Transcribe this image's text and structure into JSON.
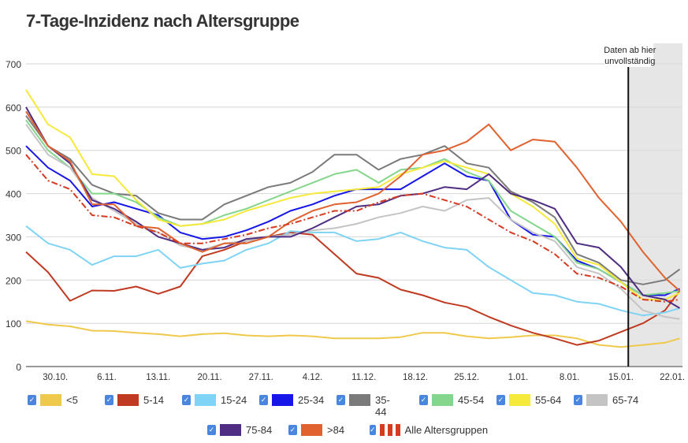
{
  "title": "7-Tage-Inzidenz nach Altersgruppe",
  "annotation": [
    "Daten ab hier",
    "unvollständig"
  ],
  "chart_data": {
    "type": "line",
    "title": "7-Tage-Inzidenz nach Altersgruppe",
    "xlabel": "",
    "ylabel": "",
    "ylim": [
      0,
      700
    ],
    "yticks": [
      "0",
      "100",
      "200",
      "300",
      "400",
      "500",
      "600",
      "700"
    ],
    "x_days_from_26_10": [
      0,
      3,
      6,
      9,
      12,
      15,
      18,
      21,
      24,
      27,
      30,
      33,
      36,
      39,
      42,
      45,
      48,
      51,
      54,
      57,
      60,
      63,
      66,
      69,
      72,
      75,
      78,
      81,
      84,
      87,
      89
    ],
    "xticks": [
      {
        "label": "30.10.",
        "day": 4
      },
      {
        "label": "6.11.",
        "day": 11
      },
      {
        "label": "13.11.",
        "day": 18
      },
      {
        "label": "20.11.",
        "day": 25
      },
      {
        "label": "27.11.",
        "day": 32
      },
      {
        "label": "4.12.",
        "day": 39
      },
      {
        "label": "11.12.",
        "day": 46
      },
      {
        "label": "18.12.",
        "day": 53
      },
      {
        "label": "25.12.",
        "day": 60
      },
      {
        "label": "1.01.",
        "day": 67
      },
      {
        "label": "8.01.",
        "day": 74
      },
      {
        "label": "15.01.",
        "day": 81
      },
      {
        "label": "22.01.",
        "day": 88
      }
    ],
    "incomplete_from_day": 82,
    "grid": true,
    "legend_position": "bottom",
    "series": [
      {
        "name": "<5",
        "color": "#efc94c",
        "values": [
          105,
          97,
          93,
          83,
          82,
          78,
          75,
          70,
          75,
          77,
          72,
          70,
          72,
          70,
          65,
          65,
          65,
          68,
          78,
          78,
          70,
          65,
          68,
          72,
          72,
          65,
          50,
          45,
          50,
          55,
          65
        ]
      },
      {
        "name": "5-14",
        "color": "#bf3a20",
        "values": [
          265,
          218,
          152,
          176,
          175,
          185,
          168,
          185,
          255,
          270,
          290,
          300,
          310,
          305,
          260,
          215,
          205,
          178,
          165,
          148,
          138,
          115,
          95,
          78,
          65,
          50,
          60,
          80,
          100,
          130,
          175
        ]
      },
      {
        "name": "15-24",
        "color": "#7fd3f5",
        "values": [
          325,
          285,
          270,
          235,
          255,
          255,
          270,
          228,
          238,
          245,
          270,
          285,
          313,
          310,
          310,
          290,
          295,
          310,
          290,
          275,
          270,
          230,
          200,
          170,
          165,
          150,
          145,
          130,
          118,
          125,
          135
        ]
      },
      {
        "name": "25-34",
        "color": "#1616e8",
        "values": [
          510,
          460,
          430,
          370,
          380,
          365,
          350,
          310,
          295,
          300,
          315,
          335,
          360,
          375,
          395,
          410,
          410,
          410,
          440,
          470,
          440,
          430,
          340,
          305,
          300,
          245,
          225,
          195,
          165,
          165,
          180
        ]
      },
      {
        "name": "35-44",
        "color": "#7a7a7a",
        "values": [
          580,
          510,
          480,
          420,
          400,
          395,
          355,
          340,
          340,
          375,
          395,
          415,
          425,
          450,
          490,
          490,
          455,
          480,
          490,
          510,
          470,
          460,
          405,
          380,
          345,
          260,
          240,
          200,
          190,
          200,
          225
        ]
      },
      {
        "name": "45-54",
        "color": "#84d68c",
        "values": [
          570,
          500,
          460,
          400,
          400,
          380,
          345,
          325,
          330,
          350,
          365,
          385,
          405,
          425,
          445,
          455,
          425,
          455,
          460,
          480,
          450,
          430,
          360,
          330,
          300,
          240,
          225,
          195,
          165,
          170,
          175
        ]
      },
      {
        "name": "55-64",
        "color": "#f5e93a",
        "values": [
          640,
          560,
          530,
          445,
          440,
          385,
          340,
          325,
          330,
          340,
          360,
          375,
          390,
          400,
          405,
          410,
          415,
          445,
          460,
          475,
          460,
          445,
          400,
          370,
          330,
          250,
          235,
          195,
          155,
          155,
          170
        ]
      },
      {
        "name": "65-74",
        "color": "#c4c4c4",
        "values": [
          560,
          490,
          460,
          390,
          360,
          330,
          310,
          280,
          270,
          285,
          290,
          300,
          305,
          315,
          320,
          330,
          345,
          355,
          370,
          360,
          385,
          390,
          340,
          310,
          290,
          230,
          215,
          180,
          130,
          115,
          110
        ]
      },
      {
        "name": "75-84",
        "color": "#4f2d82",
        "values": [
          600,
          510,
          470,
          385,
          365,
          335,
          300,
          285,
          270,
          275,
          295,
          300,
          300,
          320,
          345,
          370,
          375,
          395,
          400,
          415,
          410,
          445,
          400,
          385,
          365,
          285,
          275,
          230,
          165,
          155,
          135
        ]
      },
      {
        "name": ">84",
        "color": "#e0622f",
        "values": [
          590,
          510,
          475,
          375,
          375,
          325,
          320,
          285,
          265,
          285,
          285,
          300,
          335,
          360,
          375,
          380,
          400,
          440,
          490,
          500,
          520,
          560,
          500,
          525,
          520,
          460,
          390,
          335,
          265,
          205,
          175
        ]
      },
      {
        "name": "Alle Altersgruppen",
        "color": "#d63a20",
        "dashed": true,
        "values": [
          490,
          430,
          410,
          350,
          345,
          325,
          310,
          285,
          285,
          295,
          305,
          320,
          330,
          345,
          360,
          360,
          380,
          395,
          400,
          385,
          370,
          340,
          310,
          290,
          260,
          215,
          205,
          185,
          155,
          150,
          155
        ]
      }
    ]
  },
  "legend": {
    "checkmark": "✓",
    "items": [
      "<5",
      "5-14",
      "15-24",
      "25-34",
      "35-\n44",
      "45-54",
      "55-64",
      "65-74",
      "75-84",
      ">84",
      "Alle Altersgruppen"
    ]
  }
}
